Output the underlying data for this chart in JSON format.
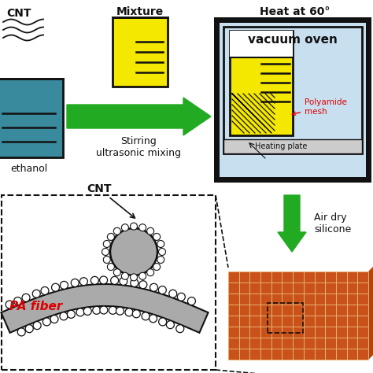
{
  "bg_color": "#ffffff",
  "teal_color": "#3a8a9e",
  "yellow_color": "#f5e800",
  "green_arrow_color": "#22aa22",
  "dark_color": "#111111",
  "gray_fiber": "#aaaaaa",
  "gray_dark": "#888888",
  "light_blue_oven": "#c8dff0",
  "orange_mesh": "#c8521a",
  "orange_dark": "#8a3010",
  "orange_side": "#b04510",
  "red_label": "#dd0000",
  "title_cnt": "CNT",
  "title_mixture": "Mixture",
  "title_heat": "Heat at 60°",
  "label_ethanol": "ethanol",
  "label_stirring": "Stirring\nultrasonic mixing",
  "label_vacuum": "vacuum oven",
  "label_heating": "Heating plate",
  "label_polyamide": "Polyamide\nmesh",
  "label_cnt": "CNT",
  "label_pa_fiber": "PA fiber",
  "label_air_dry": "Air dry\nsilicone"
}
